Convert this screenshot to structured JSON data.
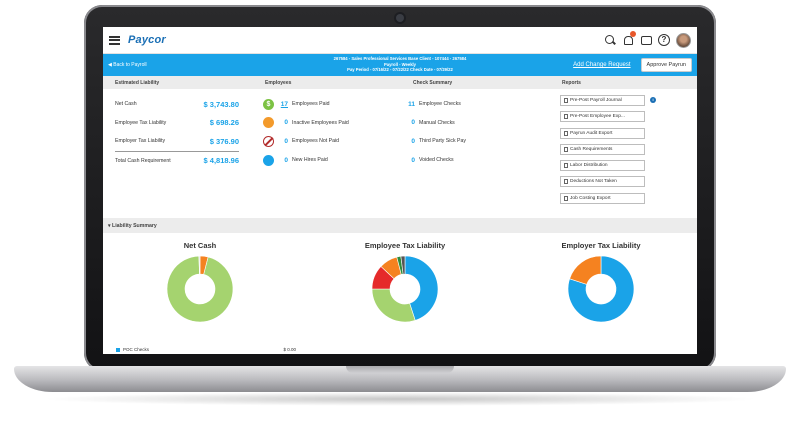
{
  "app": {
    "logo": "Paycor"
  },
  "topbar": {
    "icons": [
      "search-icon",
      "bell-icon",
      "chat-icon",
      "help-icon"
    ]
  },
  "bluebar": {
    "back_label": "Back to Payroll",
    "client_line1": "267584 - Sales Professional Services Base Client - 107444 - 267584",
    "client_line2": "Payroll - Weekly",
    "client_line3": "Pay Period - 07/16/22 - 07/22/22     Check Date - 07/29/22",
    "add_change_label": "Add Change Request",
    "approve_label": "Approve Payrun"
  },
  "headers": {
    "liability": "Estimated Liability",
    "employees": "Employees",
    "checks": "Check Summary",
    "reports": "Reports"
  },
  "liability": [
    {
      "label": "Net Cash",
      "value": "$ 3,743.80"
    },
    {
      "label": "Employee Tax Liability",
      "value": "$ 698.26"
    },
    {
      "label": "Employer Tax Liability",
      "value": "$ 376.90"
    },
    {
      "label": "Total Cash Requirement",
      "value": "$ 4,818.96"
    }
  ],
  "employees": [
    {
      "icon": "dollar-icon",
      "glyph": "$",
      "count": "17",
      "label": "Employees Paid"
    },
    {
      "icon": "inactive-employee-icon",
      "glyph": "",
      "count": "0",
      "label": "Inactive Employees Paid"
    },
    {
      "icon": "not-paid-icon",
      "glyph": "",
      "count": "0",
      "label": "Employees Not Paid"
    },
    {
      "icon": "new-hire-icon",
      "glyph": "",
      "count": "0",
      "label": "New Hires Paid"
    }
  ],
  "checks": [
    {
      "count": "11",
      "label": "Employee Checks"
    },
    {
      "count": "0",
      "label": "Manual Checks"
    },
    {
      "count": "0",
      "label": "Third Party Sick Pay"
    },
    {
      "count": "0",
      "label": "Voided Checks"
    }
  ],
  "reports": [
    "Pre-Post Payroll Journal",
    "Pre-Post Employee Exp...",
    "Payrun Audit Export",
    "Cash Requirements",
    "Labor Distribution",
    "Deductions Not Taken",
    "Job Costing Export"
  ],
  "liability_summary": {
    "label": "Liability Summary"
  },
  "chart_data": [
    {
      "type": "pie",
      "title": "Net Cash",
      "slices": [
        {
          "name": "POC Checks",
          "value": 0.0,
          "color": "#1aa3e8"
        },
        {
          "name": "Partial Direct Deposit",
          "value": 149.44,
          "color": "#f58220"
        },
        {
          "name": "",
          "value": 3594.36,
          "color": "#a5d36f"
        },
        {
          "name": "",
          "value": 20,
          "color": "#d9d9d9"
        }
      ]
    },
    {
      "type": "pie",
      "title": "Employee Tax Liability",
      "slices": [
        {
          "name": "",
          "value": 45,
          "color": "#1aa3e8"
        },
        {
          "name": "",
          "value": 30,
          "color": "#a5d36f"
        },
        {
          "name": "",
          "value": 12,
          "color": "#e52a2a"
        },
        {
          "name": "",
          "value": 9,
          "color": "#f58220"
        },
        {
          "name": "",
          "value": 2,
          "color": "#2e8b3a"
        },
        {
          "name": "",
          "value": 2,
          "color": "#555555"
        }
      ]
    },
    {
      "type": "pie",
      "title": "Employer Tax Liability",
      "slices": [
        {
          "name": "",
          "value": 80,
          "color": "#1aa3e8"
        },
        {
          "name": "",
          "value": 20,
          "color": "#f58220"
        }
      ]
    }
  ],
  "legend": [
    {
      "name": "POC Checks",
      "value": "$ 0.00",
      "color": "#1aa3e8"
    },
    {
      "name": "Partial Direct Deposit",
      "value": "$ 149.44",
      "color": "#f58220"
    }
  ]
}
